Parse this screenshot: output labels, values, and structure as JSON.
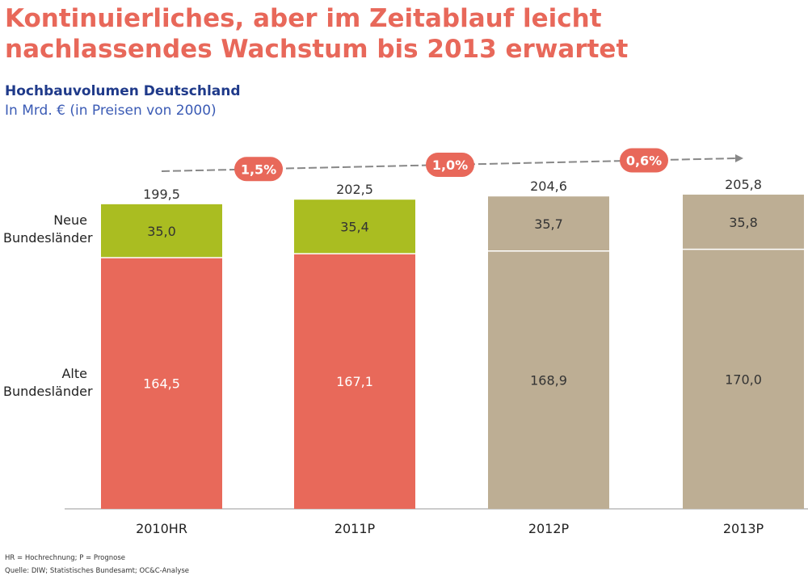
{
  "title": "Kontinuierliches, aber im Zeitablauf leicht nachlassendes Wachstum bis 2013 erwartet",
  "subtitle": "Hochbauvolumen Deutschland",
  "unit": "In Mrd. € (in Preisen von 2000)",
  "row_labels": {
    "top": [
      "Neue",
      "Bundesländer"
    ],
    "bottom": [
      "Alte",
      "Bundesländer"
    ]
  },
  "footnotes": {
    "abbrev": "HR = Hochrechnung; P = Prognose",
    "source": "Quelle: DIW; Statistisches Bundesamt; OC&C-Analyse"
  },
  "colors": {
    "alt_actual": "#e8695a",
    "neu_actual": "#aabd21",
    "forecast": "#bdae94",
    "growth_badge": "#e8685a",
    "title": "#e8685a",
    "subtitle": "#1f3a8a"
  },
  "chart_data": {
    "type": "bar",
    "stacked": true,
    "categories": [
      "2010HR",
      "2011P",
      "2012P",
      "2013P"
    ],
    "series": [
      {
        "name": "Alte Bundesländer",
        "values": [
          164.5,
          167.1,
          168.9,
          170.0
        ],
        "labels": [
          "164,5",
          "167,1",
          "168,9",
          "170,0"
        ]
      },
      {
        "name": "Neue Bundesländer",
        "values": [
          35.0,
          35.4,
          35.7,
          35.8
        ],
        "labels": [
          "35,0",
          "35,4",
          "35,7",
          "35,8"
        ]
      }
    ],
    "totals": [
      199.5,
      202.5,
      204.6,
      205.8
    ],
    "total_labels": [
      "199,5",
      "202,5",
      "204,6",
      "205,8"
    ],
    "forecast_categories": [
      "2012P",
      "2013P"
    ],
    "growth_rates": [
      "1,5%",
      "1,0%",
      "0,6%"
    ],
    "ylim": [
      0,
      215
    ],
    "grid": false,
    "legend": "left row labels"
  }
}
